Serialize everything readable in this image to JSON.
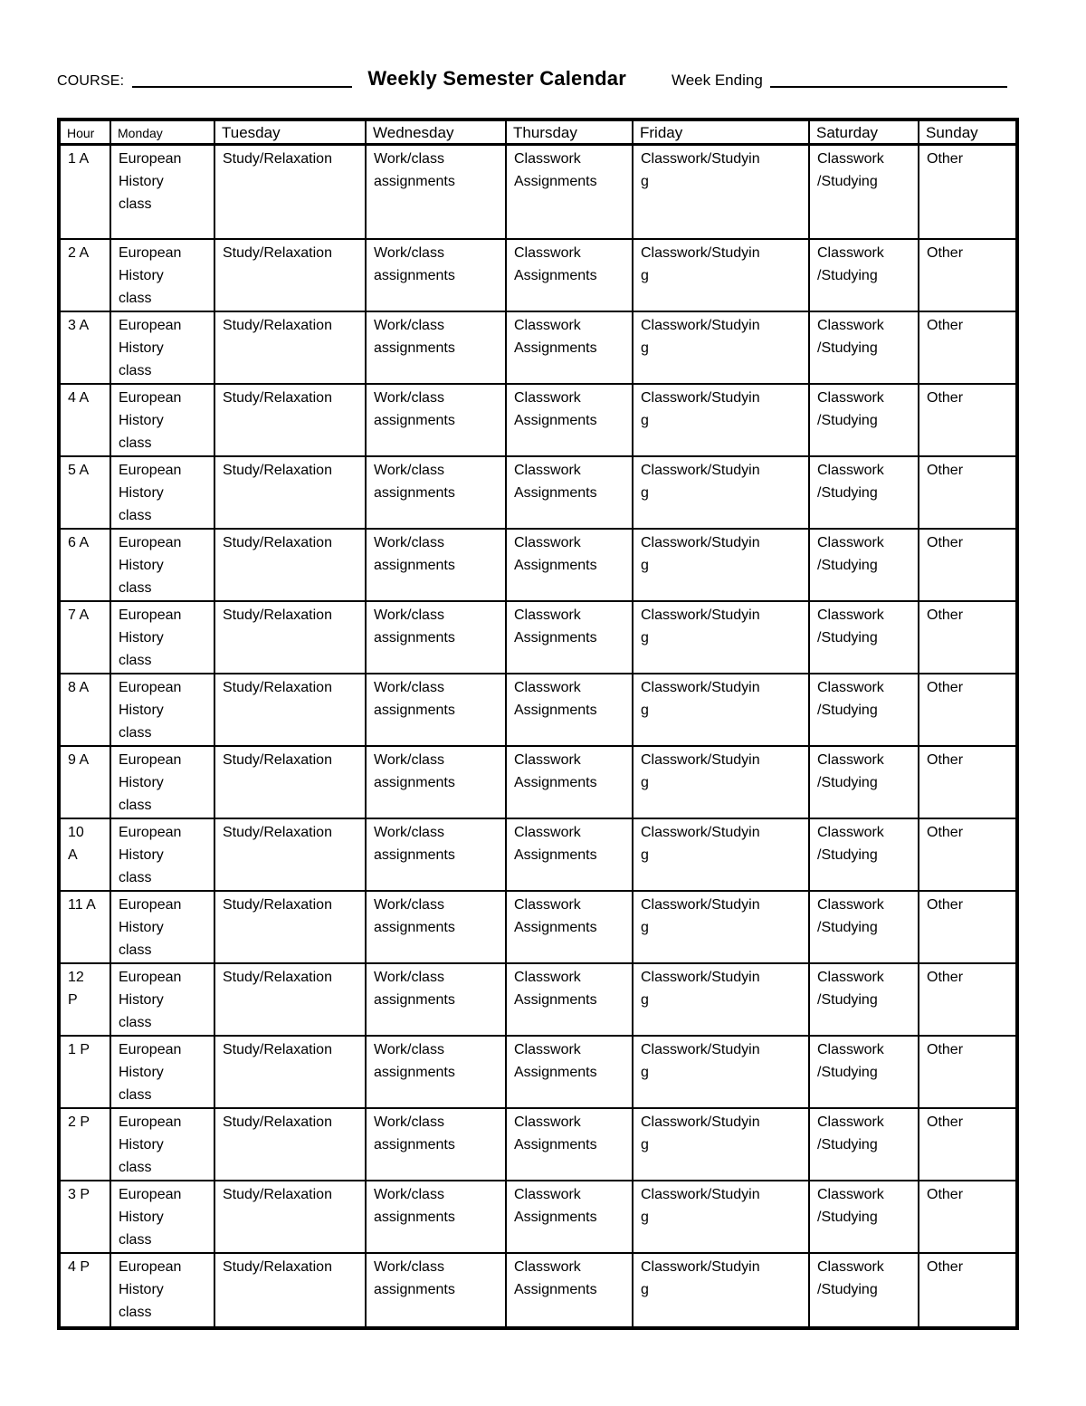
{
  "header": {
    "course_label": "COURSE:",
    "title": "Weekly Semester Calendar",
    "week_ending_label": "Week Ending"
  },
  "table": {
    "columns": [
      "Hour",
      "Monday",
      "Tuesday",
      "Wednesday",
      "Thursday",
      "Friday",
      "Saturday",
      "Sunday"
    ],
    "rows": [
      {
        "cells": [
          "1 A",
          "European History class",
          "Study/Relaxation",
          "Work/class assignments",
          "Classwork Assignments",
          "Classwork/Studying",
          "Classwork /Studying",
          "Other"
        ]
      },
      {
        "cells": [
          "2 A",
          "European History class",
          "Study/Relaxation",
          "Work/class assignments",
          "Classwork Assignments",
          "Classwork/Studying",
          "Classwork /Studying",
          "Other"
        ]
      },
      {
        "cells": [
          "3 A",
          "European History class",
          "Study/Relaxation",
          "Work/class assignments",
          "Classwork Assignments",
          "Classwork/Studying",
          "Classwork /Studying",
          "Other"
        ]
      },
      {
        "cells": [
          "4 A",
          "European History class",
          "Study/Relaxation",
          "Work/class assignments",
          "Classwork Assignments",
          "Classwork/Studying",
          "Classwork /Studying",
          "Other"
        ]
      },
      {
        "cells": [
          "5 A",
          "European History class",
          "Study/Relaxation",
          "Work/class assignments",
          "Classwork Assignments",
          "Classwork/Studying",
          "Classwork /Studying",
          "Other"
        ]
      },
      {
        "cells": [
          "6 A",
          "European History class",
          "Study/Relaxation",
          "Work/class assignments",
          "Classwork Assignments",
          "Classwork/Studying",
          "Classwork /Studying",
          "Other"
        ]
      },
      {
        "cells": [
          "7 A",
          "European History class",
          "Study/Relaxation",
          "Work/class assignments",
          "Classwork Assignments",
          "Classwork/Studying",
          "Classwork /Studying",
          "Other"
        ]
      },
      {
        "cells": [
          "8 A",
          "European History class",
          "Study/Relaxation",
          "Work/class assignments",
          "Classwork Assignments",
          "Classwork/Studying",
          "Classwork /Studying",
          "Other"
        ]
      },
      {
        "cells": [
          "9 A",
          "European History class",
          "Study/Relaxation",
          "Work/class assignments",
          "Classwork Assignments",
          "Classwork/Studying",
          "Classwork /Studying",
          "Other"
        ]
      },
      {
        "cells": [
          "10 A",
          "European History class",
          "Study/Relaxation",
          "Work/class assignments",
          "Classwork Assignments",
          "Classwork/Studying",
          "Classwork /Studying",
          "Other"
        ]
      },
      {
        "cells": [
          "11 A",
          "European History class",
          "Study/Relaxation",
          "Work/class assignments",
          "Classwork Assignments",
          "Classwork/Studying",
          "Classwork /Studying",
          "Other"
        ]
      },
      {
        "cells": [
          "12 P",
          "European History class",
          "Study/Relaxation",
          "Work/class assignments",
          "Classwork Assignments",
          "Classwork/Studying",
          "Classwork /Studying",
          "Other"
        ]
      },
      {
        "cells": [
          "1 P",
          "European History class",
          "Study/Relaxation",
          "Work/class assignments",
          "Classwork Assignments",
          "Classwork/Studying",
          "Classwork /Studying",
          "Other"
        ]
      },
      {
        "cells": [
          "2 P",
          "European History class",
          "Study/Relaxation",
          "Work/class assignments",
          "Classwork Assignments",
          "Classwork/Studying",
          "Classwork /Studying",
          "Other"
        ]
      },
      {
        "cells": [
          "3 P",
          "European History class",
          "Study/Relaxation",
          "Work/class assignments",
          "Classwork Assignments",
          "Classwork/Studying",
          "Classwork /Studying",
          "Other"
        ]
      },
      {
        "cells": [
          "4 P",
          "European History class",
          "Study/Relaxation",
          "Work/class assignments",
          "Classwork Assignments",
          "Classwork/Studying",
          "Classwork /Studying",
          "Other"
        ]
      }
    ]
  }
}
